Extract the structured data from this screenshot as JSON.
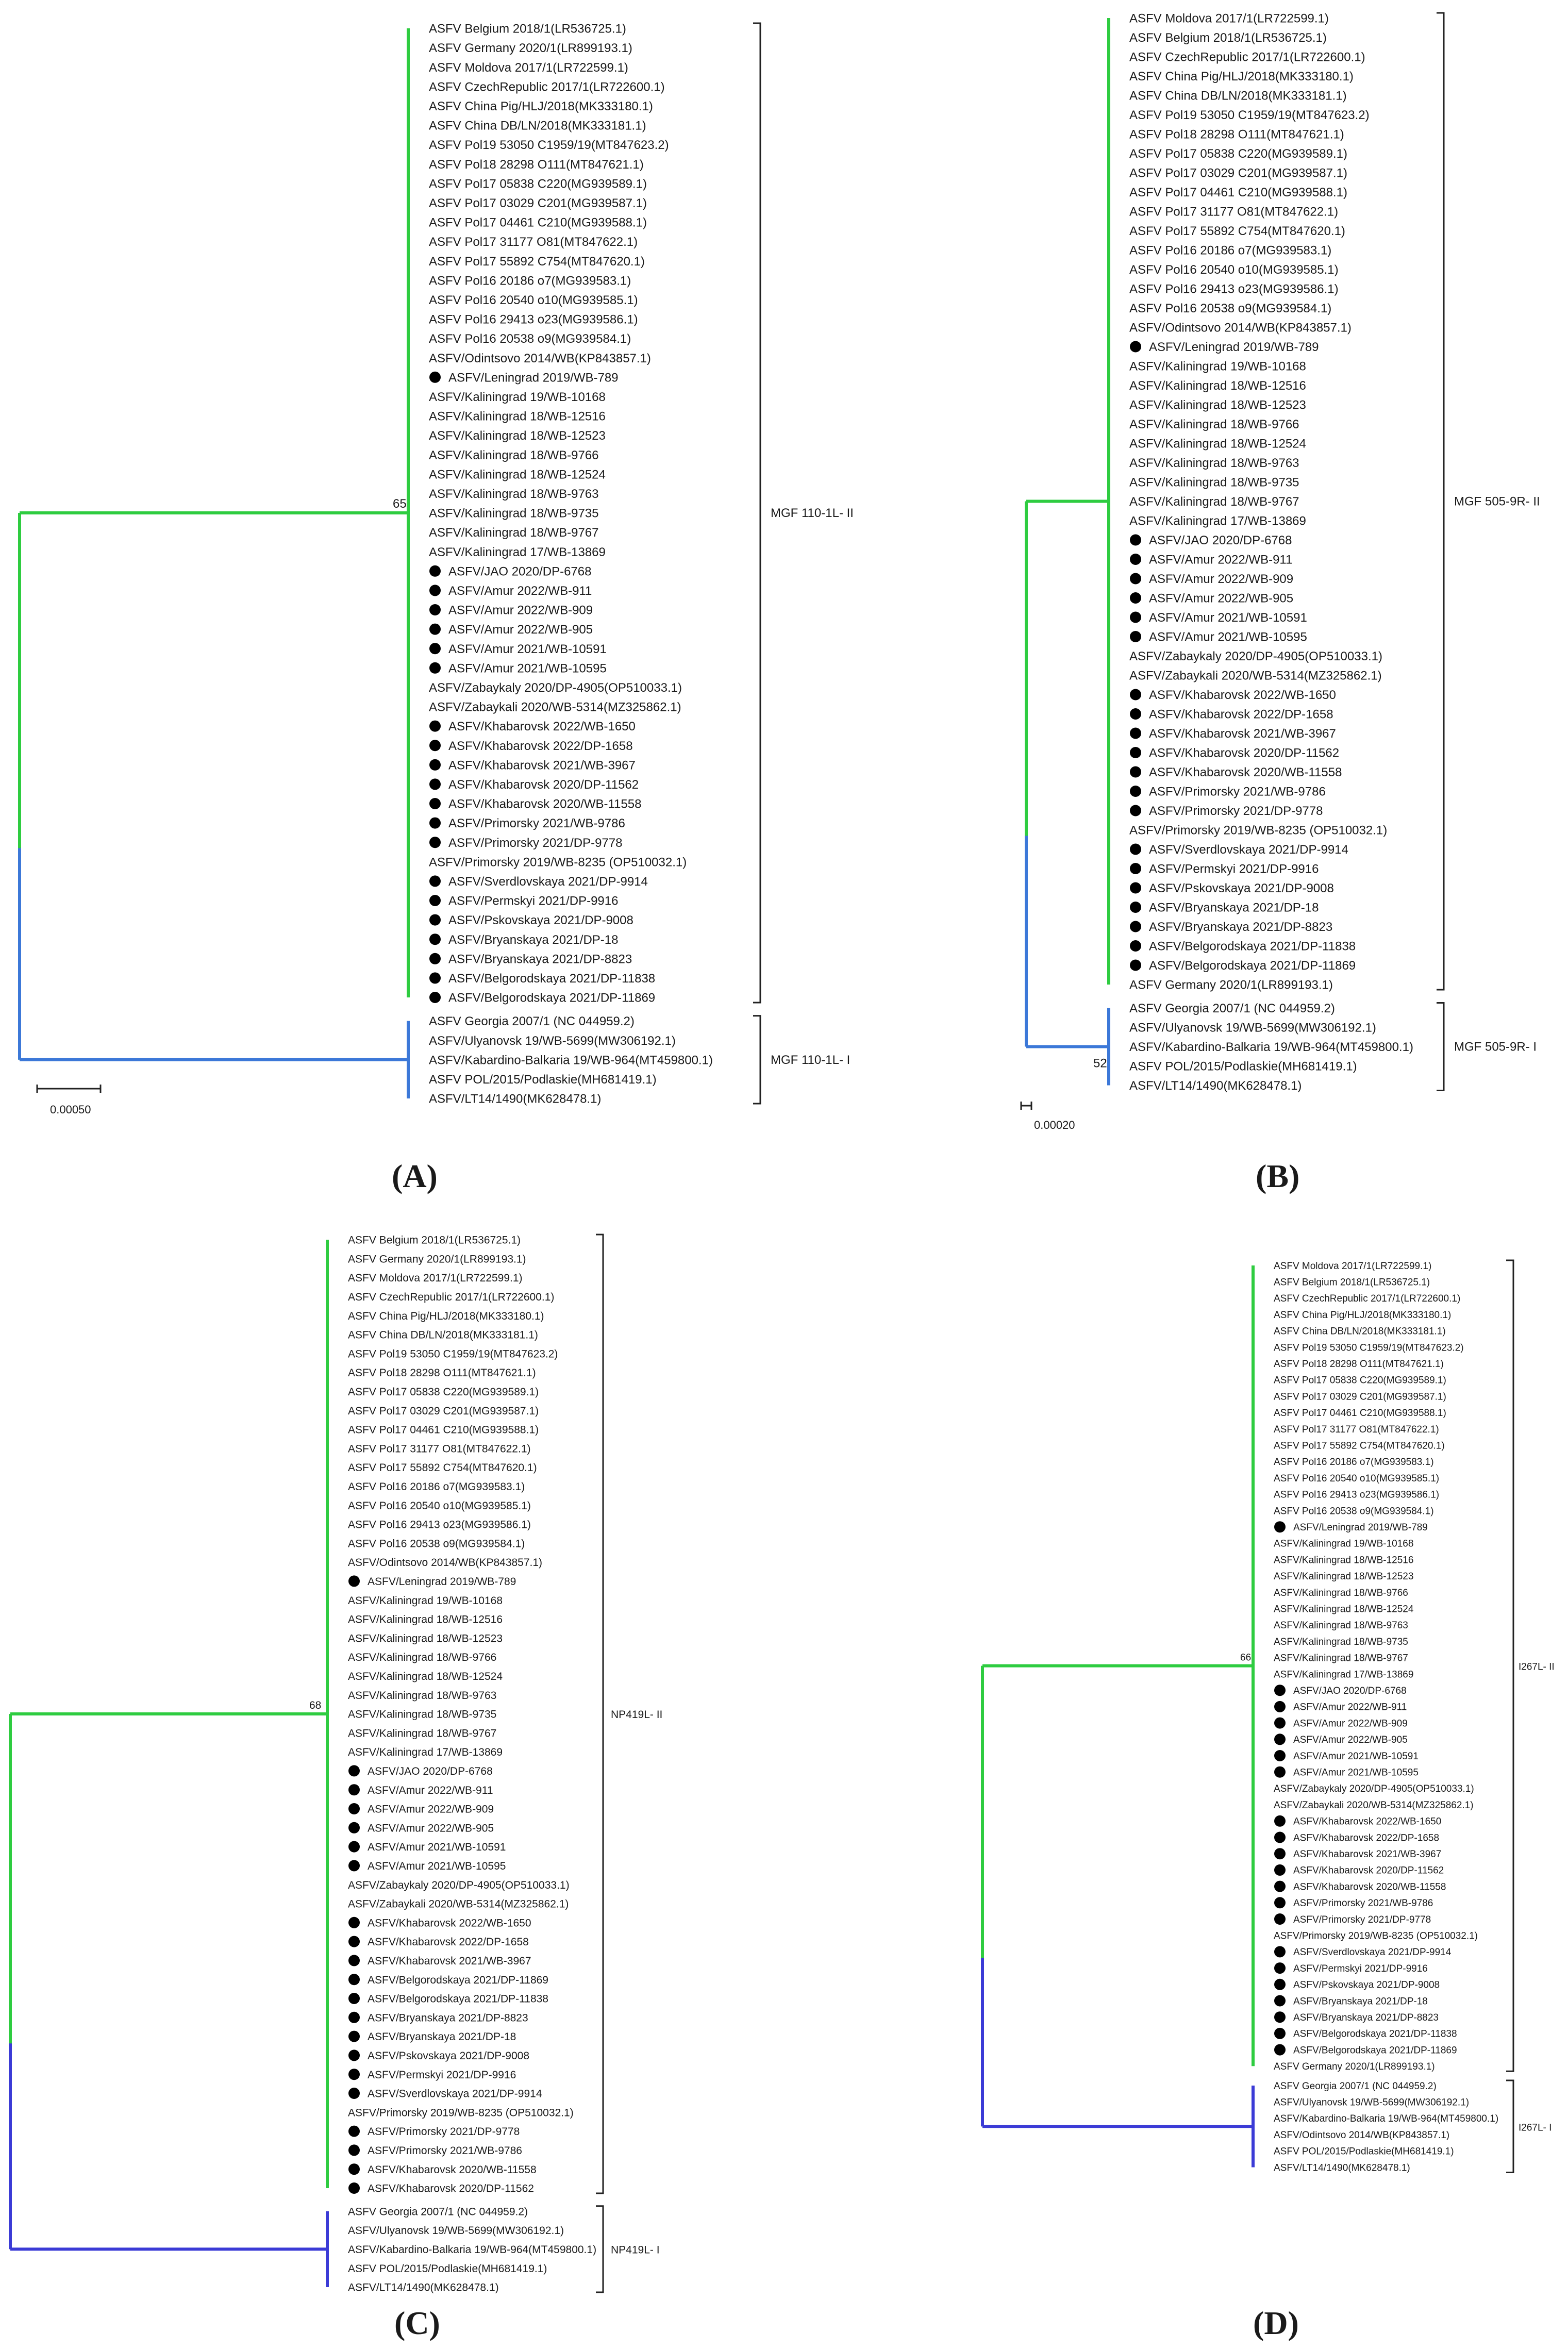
{
  "colors": {
    "group_ii": "#2ecc40",
    "group_i_ab": "#3c78d8",
    "group_i_cd": "#3b3bd6",
    "root": "#555555",
    "dot": "#000000"
  },
  "panels": {
    "a": {
      "label": "(A)",
      "clade_ii_label": "MGF 110-1L- II",
      "clade_i_label": "MGF 110-1L- I",
      "bootstrap": "65",
      "bootstrap_i": "",
      "scale_label": "0.00050",
      "clade_ii": [
        [
          "ASFV Belgium 2018/1(LR536725.1)",
          false
        ],
        [
          "ASFV Germany 2020/1(LR899193.1)",
          false
        ],
        [
          "ASFV Moldova 2017/1(LR722599.1)",
          false
        ],
        [
          "ASFV CzechRepublic 2017/1(LR722600.1)",
          false
        ],
        [
          "ASFV China Pig/HLJ/2018(MK333180.1)",
          false
        ],
        [
          "ASFV China DB/LN/2018(MK333181.1)",
          false
        ],
        [
          "ASFV Pol19 53050 C1959/19(MT847623.2)",
          false
        ],
        [
          "ASFV Pol18 28298 O111(MT847621.1)",
          false
        ],
        [
          "ASFV Pol17 05838 C220(MG939589.1)",
          false
        ],
        [
          "ASFV Pol17 03029 C201(MG939587.1)",
          false
        ],
        [
          "ASFV Pol17 04461 C210(MG939588.1)",
          false
        ],
        [
          "ASFV Pol17 31177 O81(MT847622.1)",
          false
        ],
        [
          "ASFV Pol17 55892 C754(MT847620.1)",
          false
        ],
        [
          "ASFV Pol16 20186 o7(MG939583.1)",
          false
        ],
        [
          "ASFV Pol16 20540 o10(MG939585.1)",
          false
        ],
        [
          "ASFV Pol16 29413 o23(MG939586.1)",
          false
        ],
        [
          "ASFV Pol16 20538 o9(MG939584.1)",
          false
        ],
        [
          "ASFV/Odintsovo 2014/WB(KP843857.1)",
          false
        ],
        [
          "ASFV/Leningrad 2019/WB-789",
          true
        ],
        [
          "ASFV/Kaliningrad 19/WB-10168",
          false
        ],
        [
          "ASFV/Kaliningrad 18/WB-12516",
          false
        ],
        [
          "ASFV/Kaliningrad 18/WB-12523",
          false
        ],
        [
          "ASFV/Kaliningrad 18/WB-9766",
          false
        ],
        [
          "ASFV/Kaliningrad 18/WB-12524",
          false
        ],
        [
          "ASFV/Kaliningrad 18/WB-9763",
          false
        ],
        [
          "ASFV/Kaliningrad 18/WB-9735",
          false
        ],
        [
          "ASFV/Kaliningrad 18/WB-9767",
          false
        ],
        [
          "ASFV/Kaliningrad 17/WB-13869",
          false
        ],
        [
          "ASFV/JAO 2020/DP-6768",
          true
        ],
        [
          "ASFV/Amur 2022/WB-911",
          true
        ],
        [
          "ASFV/Amur 2022/WB-909",
          true
        ],
        [
          "ASFV/Amur 2022/WB-905",
          true
        ],
        [
          "ASFV/Amur 2021/WB-10591",
          true
        ],
        [
          "ASFV/Amur 2021/WB-10595",
          true
        ],
        [
          "ASFV/Zabaykaly 2020/DP-4905(OP510033.1)",
          false
        ],
        [
          "ASFV/Zabaykali 2020/WB-5314(MZ325862.1)",
          false
        ],
        [
          "ASFV/Khabarovsk 2022/WB-1650",
          true
        ],
        [
          "ASFV/Khabarovsk 2022/DP-1658",
          true
        ],
        [
          "ASFV/Khabarovsk 2021/WB-3967",
          true
        ],
        [
          "ASFV/Khabarovsk 2020/DP-11562",
          true
        ],
        [
          "ASFV/Khabarovsk 2020/WB-11558",
          true
        ],
        [
          "ASFV/Primorsky 2021/WB-9786",
          true
        ],
        [
          "ASFV/Primorsky 2021/DP-9778",
          true
        ],
        [
          "ASFV/Primorsky 2019/WB-8235 (OP510032.1)",
          false
        ],
        [
          "ASFV/Sverdlovskaya 2021/DP-9914",
          true
        ],
        [
          "ASFV/Permskyi 2021/DP-9916",
          true
        ],
        [
          "ASFV/Pskovskaya 2021/DP-9008",
          true
        ],
        [
          "ASFV/Bryanskaya 2021/DP-18",
          true
        ],
        [
          "ASFV/Bryanskaya 2021/DP-8823",
          true
        ],
        [
          "ASFV/Belgorodskaya 2021/DP-11838",
          true
        ],
        [
          "ASFV/Belgorodskaya 2021/DP-11869",
          true
        ]
      ],
      "clade_i": [
        [
          "ASFV Georgia 2007/1 (NC 044959.2)",
          false
        ],
        [
          "ASFV/Ulyanovsk 19/WB-5699(MW306192.1)",
          false
        ],
        [
          "ASFV/Kabardino-Balkaria 19/WB-964(MT459800.1)",
          false
        ],
        [
          "ASFV POL/2015/Podlaskie(MH681419.1)",
          false
        ],
        [
          "ASFV/LT14/1490(MK628478.1)",
          false
        ]
      ]
    },
    "b": {
      "label": "(B)",
      "clade_ii_label": "MGF 505-9R- II",
      "clade_i_label": "MGF 505-9R- I",
      "bootstrap": "",
      "bootstrap_i": "52",
      "scale_label": "0.00020",
      "clade_ii": [
        [
          "ASFV Moldova 2017/1(LR722599.1)",
          false
        ],
        [
          "ASFV Belgium 2018/1(LR536725.1)",
          false
        ],
        [
          "ASFV CzechRepublic 2017/1(LR722600.1)",
          false
        ],
        [
          "ASFV China Pig/HLJ/2018(MK333180.1)",
          false
        ],
        [
          "ASFV China DB/LN/2018(MK333181.1)",
          false
        ],
        [
          "ASFV Pol19 53050 C1959/19(MT847623.2)",
          false
        ],
        [
          "ASFV Pol18 28298 O111(MT847621.1)",
          false
        ],
        [
          "ASFV Pol17 05838 C220(MG939589.1)",
          false
        ],
        [
          "ASFV Pol17 03029 C201(MG939587.1)",
          false
        ],
        [
          "ASFV Pol17 04461 C210(MG939588.1)",
          false
        ],
        [
          "ASFV Pol17 31177 O81(MT847622.1)",
          false
        ],
        [
          "ASFV Pol17 55892 C754(MT847620.1)",
          false
        ],
        [
          "ASFV Pol16 20186 o7(MG939583.1)",
          false
        ],
        [
          "ASFV Pol16 20540 o10(MG939585.1)",
          false
        ],
        [
          "ASFV Pol16 29413 o23(MG939586.1)",
          false
        ],
        [
          "ASFV Pol16 20538 o9(MG939584.1)",
          false
        ],
        [
          "ASFV/Odintsovo 2014/WB(KP843857.1)",
          false
        ],
        [
          "ASFV/Leningrad 2019/WB-789",
          true
        ],
        [
          "ASFV/Kaliningrad 19/WB-10168",
          false
        ],
        [
          "ASFV/Kaliningrad 18/WB-12516",
          false
        ],
        [
          "ASFV/Kaliningrad 18/WB-12523",
          false
        ],
        [
          "ASFV/Kaliningrad 18/WB-9766",
          false
        ],
        [
          "ASFV/Kaliningrad 18/WB-12524",
          false
        ],
        [
          "ASFV/Kaliningrad 18/WB-9763",
          false
        ],
        [
          "ASFV/Kaliningrad 18/WB-9735",
          false
        ],
        [
          "ASFV/Kaliningrad 18/WB-9767",
          false
        ],
        [
          "ASFV/Kaliningrad 17/WB-13869",
          false
        ],
        [
          "ASFV/JAO 2020/DP-6768",
          true
        ],
        [
          "ASFV/Amur 2022/WB-911",
          true
        ],
        [
          "ASFV/Amur 2022/WB-909",
          true
        ],
        [
          "ASFV/Amur 2022/WB-905",
          true
        ],
        [
          "ASFV/Amur 2021/WB-10591",
          true
        ],
        [
          "ASFV/Amur 2021/WB-10595",
          true
        ],
        [
          "ASFV/Zabaykaly 2020/DP-4905(OP510033.1)",
          false
        ],
        [
          "ASFV/Zabaykali 2020/WB-5314(MZ325862.1)",
          false
        ],
        [
          "ASFV/Khabarovsk 2022/WB-1650",
          true
        ],
        [
          "ASFV/Khabarovsk 2022/DP-1658",
          true
        ],
        [
          "ASFV/Khabarovsk 2021/WB-3967",
          true
        ],
        [
          "ASFV/Khabarovsk 2020/DP-11562",
          true
        ],
        [
          "ASFV/Khabarovsk 2020/WB-11558",
          true
        ],
        [
          "ASFV/Primorsky 2021/WB-9786",
          true
        ],
        [
          "ASFV/Primorsky 2021/DP-9778",
          true
        ],
        [
          "ASFV/Primorsky 2019/WB-8235 (OP510032.1)",
          false
        ],
        [
          "ASFV/Sverdlovskaya 2021/DP-9914",
          true
        ],
        [
          "ASFV/Permskyi 2021/DP-9916",
          true
        ],
        [
          "ASFV/Pskovskaya 2021/DP-9008",
          true
        ],
        [
          "ASFV/Bryanskaya 2021/DP-18",
          true
        ],
        [
          "ASFV/Bryanskaya 2021/DP-8823",
          true
        ],
        [
          "ASFV/Belgorodskaya 2021/DP-11838",
          true
        ],
        [
          "ASFV/Belgorodskaya 2021/DP-11869",
          true
        ],
        [
          "ASFV Germany 2020/1(LR899193.1)",
          false
        ]
      ],
      "clade_i": [
        [
          "ASFV Georgia 2007/1 (NC 044959.2)",
          false
        ],
        [
          "ASFV/Ulyanovsk 19/WB-5699(MW306192.1)",
          false
        ],
        [
          "ASFV/Kabardino-Balkaria 19/WB-964(MT459800.1)",
          false
        ],
        [
          "ASFV POL/2015/Podlaskie(MH681419.1)",
          false
        ],
        [
          "ASFV/LT14/1490(MK628478.1)",
          false
        ]
      ]
    },
    "c": {
      "label": "(C)",
      "clade_ii_label": "NP419L- II",
      "clade_i_label": "NP419L- I",
      "bootstrap": "68",
      "bootstrap_i": "",
      "scale_label": "",
      "clade_ii": [
        [
          "ASFV Belgium 2018/1(LR536725.1)",
          false
        ],
        [
          "ASFV Germany 2020/1(LR899193.1)",
          false
        ],
        [
          "ASFV Moldova 2017/1(LR722599.1)",
          false
        ],
        [
          "ASFV CzechRepublic 2017/1(LR722600.1)",
          false
        ],
        [
          "ASFV China Pig/HLJ/2018(MK333180.1)",
          false
        ],
        [
          "ASFV China DB/LN/2018(MK333181.1)",
          false
        ],
        [
          "ASFV Pol19 53050 C1959/19(MT847623.2)",
          false
        ],
        [
          "ASFV Pol18 28298 O111(MT847621.1)",
          false
        ],
        [
          "ASFV Pol17 05838 C220(MG939589.1)",
          false
        ],
        [
          "ASFV Pol17 03029 C201(MG939587.1)",
          false
        ],
        [
          "ASFV Pol17 04461 C210(MG939588.1)",
          false
        ],
        [
          "ASFV Pol17 31177 O81(MT847622.1)",
          false
        ],
        [
          "ASFV Pol17 55892 C754(MT847620.1)",
          false
        ],
        [
          "ASFV Pol16 20186 o7(MG939583.1)",
          false
        ],
        [
          "ASFV Pol16 20540 o10(MG939585.1)",
          false
        ],
        [
          "ASFV Pol16 29413 o23(MG939586.1)",
          false
        ],
        [
          "ASFV Pol16 20538 o9(MG939584.1)",
          false
        ],
        [
          "ASFV/Odintsovo 2014/WB(KP843857.1)",
          false
        ],
        [
          "ASFV/Leningrad 2019/WB-789",
          true
        ],
        [
          "ASFV/Kaliningrad 19/WB-10168",
          false
        ],
        [
          "ASFV/Kaliningrad 18/WB-12516",
          false
        ],
        [
          "ASFV/Kaliningrad 18/WB-12523",
          false
        ],
        [
          "ASFV/Kaliningrad 18/WB-9766",
          false
        ],
        [
          "ASFV/Kaliningrad 18/WB-12524",
          false
        ],
        [
          "ASFV/Kaliningrad 18/WB-9763",
          false
        ],
        [
          "ASFV/Kaliningrad 18/WB-9735",
          false
        ],
        [
          "ASFV/Kaliningrad 18/WB-9767",
          false
        ],
        [
          "ASFV/Kaliningrad 17/WB-13869",
          false
        ],
        [
          "ASFV/JAO 2020/DP-6768",
          true
        ],
        [
          "ASFV/Amur 2022/WB-911",
          true
        ],
        [
          "ASFV/Amur 2022/WB-909",
          true
        ],
        [
          "ASFV/Amur 2022/WB-905",
          true
        ],
        [
          "ASFV/Amur 2021/WB-10591",
          true
        ],
        [
          "ASFV/Amur 2021/WB-10595",
          true
        ],
        [
          "ASFV/Zabaykaly 2020/DP-4905(OP510033.1)",
          false
        ],
        [
          "ASFV/Zabaykali 2020/WB-5314(MZ325862.1)",
          false
        ],
        [
          "ASFV/Khabarovsk 2022/WB-1650",
          true
        ],
        [
          "ASFV/Khabarovsk 2022/DP-1658",
          true
        ],
        [
          "ASFV/Khabarovsk 2021/WB-3967",
          true
        ],
        [
          "ASFV/Belgorodskaya 2021/DP-11869",
          true
        ],
        [
          "ASFV/Belgorodskaya 2021/DP-11838",
          true
        ],
        [
          "ASFV/Bryanskaya 2021/DP-8823",
          true
        ],
        [
          "ASFV/Bryanskaya 2021/DP-18",
          true
        ],
        [
          "ASFV/Pskovskaya 2021/DP-9008",
          true
        ],
        [
          "ASFV/Permskyi 2021/DP-9916",
          true
        ],
        [
          "ASFV/Sverdlovskaya 2021/DP-9914",
          true
        ],
        [
          "ASFV/Primorsky 2019/WB-8235 (OP510032.1)",
          false
        ],
        [
          "ASFV/Primorsky 2021/DP-9778",
          true
        ],
        [
          "ASFV/Primorsky 2021/WB-9786",
          true
        ],
        [
          "ASFV/Khabarovsk 2020/WB-11558",
          true
        ],
        [
          "ASFV/Khabarovsk 2020/DP-11562",
          true
        ]
      ],
      "clade_i": [
        [
          "ASFV Georgia 2007/1 (NC 044959.2)",
          false
        ],
        [
          "ASFV/Ulyanovsk 19/WB-5699(MW306192.1)",
          false
        ],
        [
          "ASFV/Kabardino-Balkaria 19/WB-964(MT459800.1)",
          false
        ],
        [
          "ASFV POL/2015/Podlaskie(MH681419.1)",
          false
        ],
        [
          "ASFV/LT14/1490(MK628478.1)",
          false
        ]
      ]
    },
    "d": {
      "label": "(D)",
      "clade_ii_label": "I267L- II",
      "clade_i_label": "I267L- I",
      "bootstrap": "66",
      "bootstrap_i": "",
      "scale_label": "",
      "clade_ii": [
        [
          "ASFV Moldova 2017/1(LR722599.1)",
          false
        ],
        [
          "ASFV Belgium 2018/1(LR536725.1)",
          false
        ],
        [
          "ASFV CzechRepublic 2017/1(LR722600.1)",
          false
        ],
        [
          "ASFV China Pig/HLJ/2018(MK333180.1)",
          false
        ],
        [
          "ASFV China DB/LN/2018(MK333181.1)",
          false
        ],
        [
          "ASFV Pol19 53050 C1959/19(MT847623.2)",
          false
        ],
        [
          "ASFV Pol18 28298 O111(MT847621.1)",
          false
        ],
        [
          "ASFV Pol17 05838 C220(MG939589.1)",
          false
        ],
        [
          "ASFV Pol17 03029 C201(MG939587.1)",
          false
        ],
        [
          "ASFV Pol17 04461 C210(MG939588.1)",
          false
        ],
        [
          "ASFV Pol17 31177 O81(MT847622.1)",
          false
        ],
        [
          "ASFV Pol17 55892 C754(MT847620.1)",
          false
        ],
        [
          "ASFV Pol16 20186 o7(MG939583.1)",
          false
        ],
        [
          "ASFV Pol16 20540 o10(MG939585.1)",
          false
        ],
        [
          "ASFV Pol16 29413 o23(MG939586.1)",
          false
        ],
        [
          "ASFV Pol16 20538 o9(MG939584.1)",
          false
        ],
        [
          "ASFV/Leningrad 2019/WB-789",
          true
        ],
        [
          "ASFV/Kaliningrad 19/WB-10168",
          false
        ],
        [
          "ASFV/Kaliningrad 18/WB-12516",
          false
        ],
        [
          "ASFV/Kaliningrad 18/WB-12523",
          false
        ],
        [
          "ASFV/Kaliningrad 18/WB-9766",
          false
        ],
        [
          "ASFV/Kaliningrad 18/WB-12524",
          false
        ],
        [
          "ASFV/Kaliningrad 18/WB-9763",
          false
        ],
        [
          "ASFV/Kaliningrad 18/WB-9735",
          false
        ],
        [
          "ASFV/Kaliningrad 18/WB-9767",
          false
        ],
        [
          "ASFV/Kaliningrad 17/WB-13869",
          false
        ],
        [
          "ASFV/JAO 2020/DP-6768",
          true
        ],
        [
          "ASFV/Amur 2022/WB-911",
          true
        ],
        [
          "ASFV/Amur 2022/WB-909",
          true
        ],
        [
          "ASFV/Amur 2022/WB-905",
          true
        ],
        [
          "ASFV/Amur 2021/WB-10591",
          true
        ],
        [
          "ASFV/Amur 2021/WB-10595",
          true
        ],
        [
          "ASFV/Zabaykaly 2020/DP-4905(OP510033.1)",
          false
        ],
        [
          "ASFV/Zabaykali 2020/WB-5314(MZ325862.1)",
          false
        ],
        [
          "ASFV/Khabarovsk 2022/WB-1650",
          true
        ],
        [
          "ASFV/Khabarovsk 2022/DP-1658",
          true
        ],
        [
          "ASFV/Khabarovsk 2021/WB-3967",
          true
        ],
        [
          "ASFV/Khabarovsk 2020/DP-11562",
          true
        ],
        [
          "ASFV/Khabarovsk 2020/WB-11558",
          true
        ],
        [
          "ASFV/Primorsky 2021/WB-9786",
          true
        ],
        [
          "ASFV/Primorsky 2021/DP-9778",
          true
        ],
        [
          "ASFV/Primorsky 2019/WB-8235 (OP510032.1)",
          false
        ],
        [
          "ASFV/Sverdlovskaya 2021/DP-9914",
          true
        ],
        [
          "ASFV/Permskyi 2021/DP-9916",
          true
        ],
        [
          "ASFV/Pskovskaya 2021/DP-9008",
          true
        ],
        [
          "ASFV/Bryanskaya 2021/DP-18",
          true
        ],
        [
          "ASFV/Bryanskaya 2021/DP-8823",
          true
        ],
        [
          "ASFV/Belgorodskaya 2021/DP-11838",
          true
        ],
        [
          "ASFV/Belgorodskaya 2021/DP-11869",
          true
        ],
        [
          "ASFV Germany 2020/1(LR899193.1)",
          false
        ]
      ],
      "clade_i": [
        [
          "ASFV Georgia 2007/1 (NC 044959.2)",
          false
        ],
        [
          "ASFV/Ulyanovsk 19/WB-5699(MW306192.1)",
          false
        ],
        [
          "ASFV/Kabardino-Balkaria 19/WB-964(MT459800.1)",
          false
        ],
        [
          "ASFV/Odintsovo 2014/WB(KP843857.1)",
          false
        ],
        [
          "ASFV POL/2015/Podlaskie(MH681419.1)",
          false
        ],
        [
          "ASFV/LT14/1490(MK628478.1)",
          false
        ]
      ]
    }
  }
}
